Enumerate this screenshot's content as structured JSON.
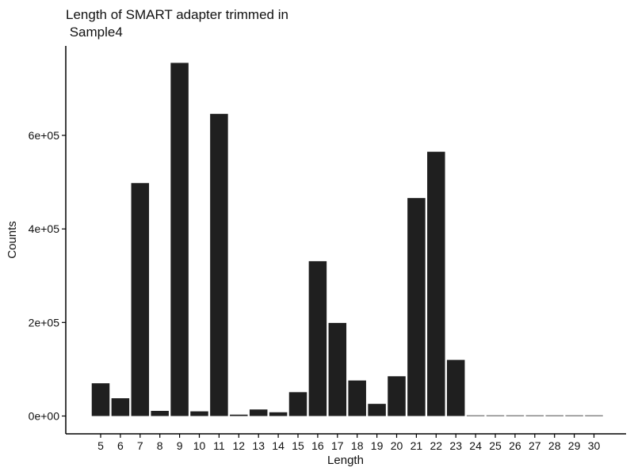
{
  "chart_data": {
    "type": "bar",
    "title_lines": [
      "Length of SMART adapter trimmed in",
      " Sample4"
    ],
    "xlabel": "Length",
    "ylabel": "Counts",
    "categories": [
      "5",
      "6",
      "7",
      "8",
      "9",
      "10",
      "11",
      "12",
      "13",
      "14",
      "15",
      "16",
      "17",
      "18",
      "19",
      "20",
      "21",
      "22",
      "23",
      "24",
      "25",
      "26",
      "27",
      "28",
      "29",
      "30"
    ],
    "values": [
      70000,
      38000,
      498000,
      11000,
      755000,
      10000,
      646000,
      3000,
      14000,
      8000,
      51000,
      331000,
      199000,
      76000,
      26000,
      85000,
      466000,
      565000,
      120000,
      300,
      1200,
      100,
      500,
      400,
      50,
      50
    ],
    "ylim": [
      0,
      780000
    ],
    "yticks": [
      0,
      200000,
      400000,
      600000
    ],
    "ytick_labels": [
      "0e+00",
      "2e+05",
      "4e+05",
      "6e+05"
    ],
    "bar_color": "#1f1f1f",
    "grid": false,
    "legend": "none"
  }
}
